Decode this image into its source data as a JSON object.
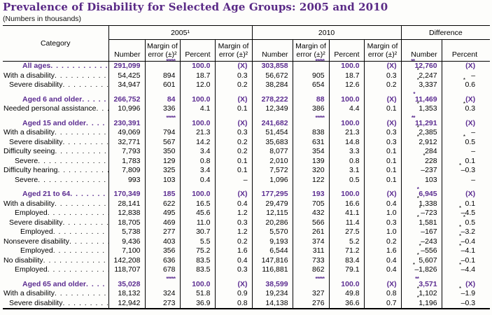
{
  "title": "Prevalence of Disability for Selected Age Groups: 2005 and 2010",
  "subtitle": "(Numbers in thousands)",
  "colors": {
    "accent_purple": "#5c2d91",
    "title_purple": "#5a2a86",
    "border": "#000000"
  },
  "table": {
    "header": {
      "category_label": "Category",
      "group_2005": "2005¹",
      "group_2010": "2010",
      "group_diff": "Difference",
      "subcols": [
        "Number",
        "Margin of error (±)²",
        "Percent",
        "Margin of error (±)²",
        "Number",
        "Margin of error (±)²",
        "Percent",
        "Margin of error (±)²",
        "Number",
        "Percent"
      ]
    },
    "sections": [
      {
        "rows": [
          {
            "label": "All ages",
            "style": "group",
            "indent": 0,
            "values": [
              "291,099",
              "*****",
              "100.0",
              "(X)",
              "303,858",
              "*****",
              "100.0",
              "(X)",
              "**12,760",
              "(X)"
            ]
          },
          {
            "label": "With a disability",
            "style": "data",
            "indent": 0,
            "values": [
              "54,425",
              "894",
              "18.7",
              "0.3",
              "56,672",
              "905",
              "18.7",
              "0.3",
              "*2,247",
              "–"
            ]
          },
          {
            "label": "Severe disability",
            "style": "data",
            "indent": 1,
            "values": [
              "34,947",
              "601",
              "12.0",
              "0.2",
              "38,284",
              "654",
              "12.6",
              "0.2",
              "*3,337",
              "*0.6"
            ]
          }
        ]
      },
      {
        "rows": [
          {
            "label": "Aged 6 and older",
            "style": "group",
            "indent": 0,
            "values": [
              "266,752",
              "84",
              "100.0",
              "(X)",
              "278,222",
              "88",
              "100.0",
              "(X)",
              "*11,469",
              "(X)"
            ]
          },
          {
            "label": "Needed personal assistance",
            "style": "data",
            "indent": 0,
            "values": [
              "10,996",
              "336",
              "4.1",
              "0.1",
              "12,349",
              "386",
              "4.4",
              "0.1",
              "*1,353",
              "*0.3"
            ]
          }
        ]
      },
      {
        "rows": [
          {
            "label": "Aged 15 and older",
            "style": "group",
            "indent": 0,
            "values": [
              "230,391",
              "*****",
              "100.0",
              "(X)",
              "241,682",
              "*****",
              "100.0",
              "(X)",
              "**11,291",
              "(X)"
            ]
          },
          {
            "label": "With a disability",
            "style": "data",
            "indent": 0,
            "values": [
              "49,069",
              "794",
              "21.3",
              "0.3",
              "51,454",
              "838",
              "21.3",
              "0.3",
              "*2,385",
              "–"
            ]
          },
          {
            "label": "Severe disability",
            "style": "data",
            "indent": 1,
            "values": [
              "32,771",
              "567",
              "14.2",
              "0.2",
              "35,683",
              "631",
              "14.8",
              "0.3",
              "*2,912",
              "*0.5"
            ]
          },
          {
            "label": "Difficulty seeing",
            "style": "data",
            "indent": 0,
            "values": [
              "7,793",
              "350",
              "3.4",
              "0.2",
              "8,077",
              "354",
              "3.3",
              "0.1",
              "284",
              "–"
            ]
          },
          {
            "label": "Severe",
            "style": "data",
            "indent": 2,
            "values": [
              "1,783",
              "129",
              "0.8",
              "0.1",
              "2,010",
              "139",
              "0.8",
              "0.1",
              "*228",
              "0.1"
            ]
          },
          {
            "label": "Difficulty hearing",
            "style": "data",
            "indent": 0,
            "values": [
              "7,809",
              "325",
              "3.4",
              "0.1",
              "7,572",
              "320",
              "3.1",
              "0.1",
              "–237",
              "*–0.3"
            ]
          },
          {
            "label": "Severe",
            "style": "data",
            "indent": 2,
            "values": [
              "993",
              "103",
              "0.4",
              "–",
              "1,096",
              "122",
              "0.5",
              "0.1",
              "103",
              "–"
            ]
          }
        ]
      },
      {
        "rows": [
          {
            "label": "Aged 21 to 64",
            "style": "group",
            "indent": 0,
            "values": [
              "170,349",
              "185",
              "100.0",
              "(X)",
              "177,295",
              "193",
              "100.0",
              "(X)",
              "*6,945",
              "(X)"
            ]
          },
          {
            "label": "With a disability",
            "style": "data",
            "indent": 0,
            "values": [
              "28,141",
              "622",
              "16.5",
              "0.4",
              "29,479",
              "705",
              "16.6",
              "0.4",
              "*1,338",
              "0.1"
            ]
          },
          {
            "label": "Employed",
            "style": "data",
            "indent": 2,
            "values": [
              "12,838",
              "495",
              "45.6",
              "1.2",
              "12,115",
              "432",
              "41.1",
              "1.0",
              "*–723",
              "*–4.5"
            ]
          },
          {
            "label": "Severe disability",
            "style": "data",
            "indent": 1,
            "values": [
              "18,705",
              "469",
              "11.0",
              "0.3",
              "20,286",
              "566",
              "11.4",
              "0.3",
              "*1,581",
              "*0.5"
            ]
          },
          {
            "label": "Employed",
            "style": "data",
            "indent": 3,
            "values": [
              "5,738",
              "277",
              "30.7",
              "1.2",
              "5,570",
              "261",
              "27.5",
              "1.0",
              "–167",
              "*–3.2"
            ]
          },
          {
            "label": "Nonsevere disability",
            "style": "data",
            "indent": 0,
            "values": [
              "9,436",
              "403",
              "5.5",
              "0.2",
              "9,193",
              "374",
              "5.2",
              "0.2",
              "–243",
              "*–0.4"
            ]
          },
          {
            "label": "Employed",
            "style": "data",
            "indent": 3,
            "values": [
              "7,100",
              "356",
              "75.2",
              "1.6",
              "6,544",
              "311",
              "71.2",
              "1.6",
              "*–556",
              "*–4.1"
            ]
          },
          {
            "label": "No disability",
            "style": "data",
            "indent": 0,
            "values": [
              "142,208",
              "636",
              "83.5",
              "0.4",
              "147,816",
              "733",
              "83.4",
              "0.4",
              "*5,607",
              "–0.1"
            ]
          },
          {
            "label": "Employed",
            "style": "data",
            "indent": 2,
            "values": [
              "118,707",
              "678",
              "83.5",
              "0.3",
              "116,881",
              "862",
              "79.1",
              "0.4",
              "*–1,826",
              "*–4.4"
            ]
          }
        ]
      },
      {
        "rows": [
          {
            "label": "Aged 65 and older",
            "style": "group",
            "indent": 0,
            "values": [
              "35,028",
              "*****",
              "100.0",
              "(X)",
              "38,599",
              "*****",
              "100.0",
              "(X)",
              "**3,571",
              "(X)"
            ]
          },
          {
            "label": "With a disability",
            "style": "data",
            "indent": 0,
            "values": [
              "18,132",
              "324",
              "51.8",
              "0.9",
              "19,234",
              "327",
              "49.8",
              "0.8",
              "*1,102",
              "*–1.9"
            ]
          },
          {
            "label": "Severe disability",
            "style": "data",
            "indent": 1,
            "values": [
              "12,942",
              "273",
              "36.9",
              "0.8",
              "14,138",
              "276",
              "36.6",
              "0.7",
              "*1,196",
              "–0.3"
            ]
          }
        ]
      }
    ]
  }
}
